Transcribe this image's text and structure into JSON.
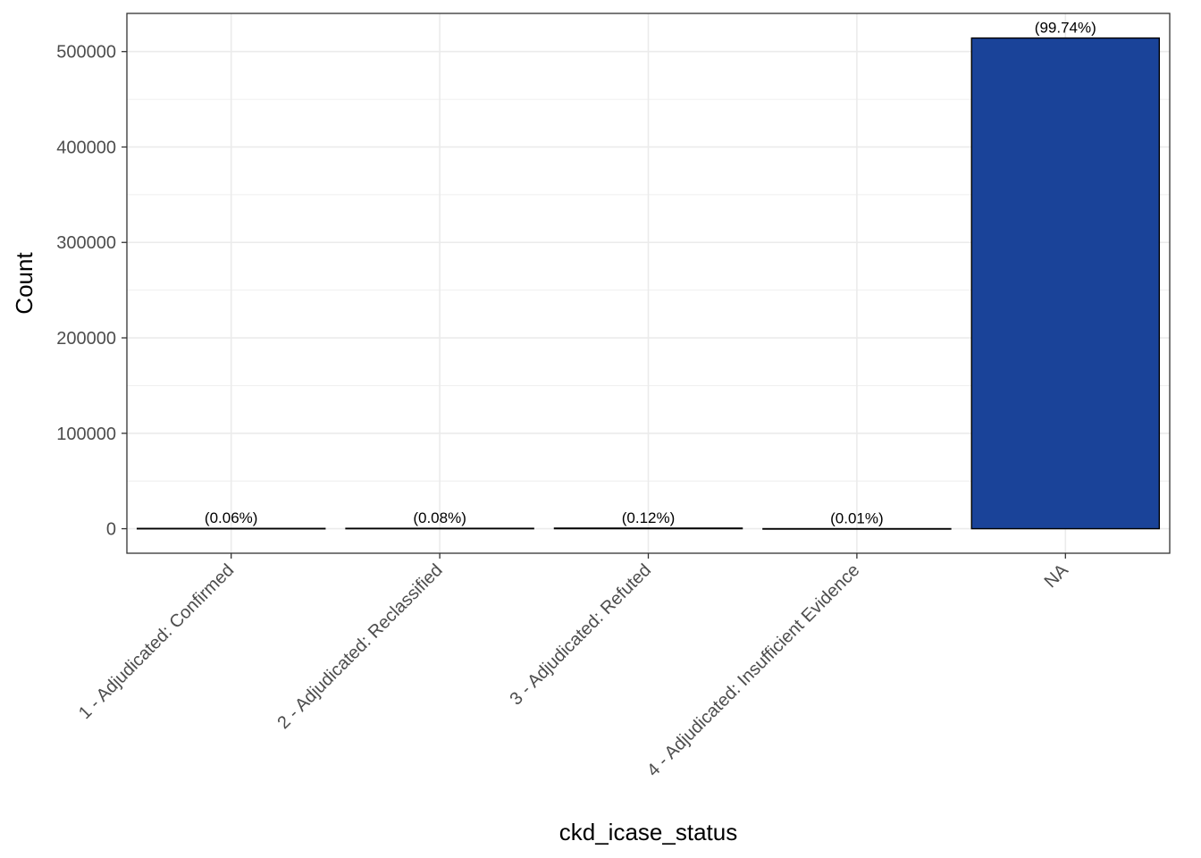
{
  "chart_data": {
    "type": "bar",
    "xlabel": "ckd_icase_status",
    "ylabel": "Count",
    "categories": [
      "1 - Adjudicated: Confirmed",
      "2 - Adjudicated: Reclassified",
      "3 - Adjudicated: Refuted",
      "4 - Adjudicated: Insufficient Evidence",
      "NA"
    ],
    "values": [
      310,
      410,
      620,
      50,
      514200
    ],
    "labels": [
      "(0.06%)",
      "(0.08%)",
      "(0.12%)",
      "(0.01%)",
      "(99.74%)"
    ],
    "ylim": [
      -25700,
      540000
    ],
    "yticks": [
      0,
      100000,
      200000,
      300000,
      400000,
      500000
    ],
    "ytick_labels": [
      "0",
      "100000",
      "200000",
      "300000",
      "400000",
      "500000"
    ],
    "grid": true,
    "legend": "none",
    "colors": {
      "bar_fill": "#1a4399",
      "bar_stroke": "#000000",
      "grid": "#ebebeb",
      "panel_border": "#333333"
    }
  }
}
